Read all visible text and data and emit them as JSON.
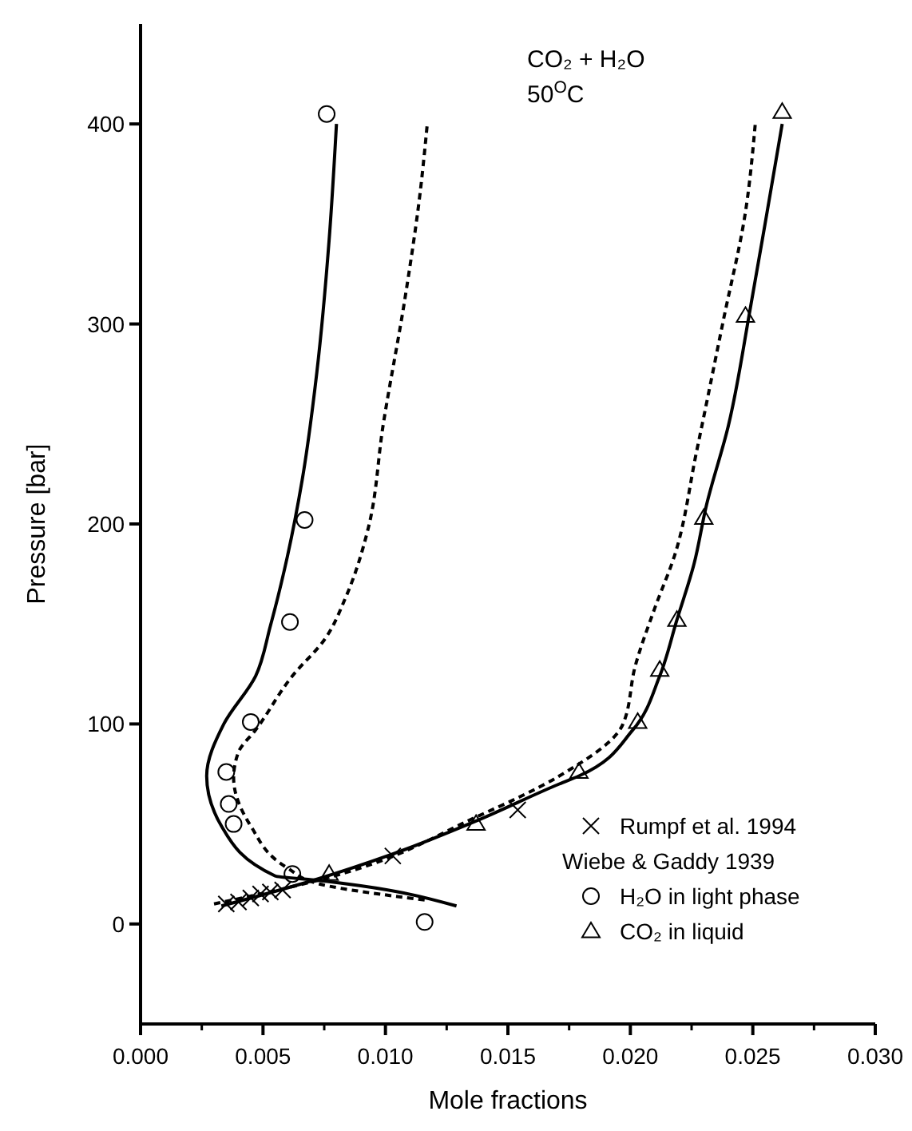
{
  "chart_data": {
    "type": "scatter",
    "xlabel": "Mole fractions",
    "ylabel": "Pressure [bar]",
    "xlim": [
      0,
      0.03
    ],
    "ylim": [
      -50,
      450
    ],
    "xticks": [
      {
        "value": 0,
        "label": "0.000"
      },
      {
        "value": 0.005,
        "label": "0.005"
      },
      {
        "value": 0.01,
        "label": "0.010"
      },
      {
        "value": 0.015,
        "label": "0.015"
      },
      {
        "value": 0.02,
        "label": "0.020"
      },
      {
        "value": 0.025,
        "label": "0.025"
      },
      {
        "value": 0.03,
        "label": "0.030"
      }
    ],
    "yticks": [
      0,
      100,
      200,
      300,
      400
    ],
    "grid": false,
    "legend": "bottom right",
    "annotations": [
      "CO₂ + H₂O",
      "50$^{O}$C",
      "Wiebe & Gaddy 1939"
    ],
    "series": [
      {
        "type": "line",
        "color": "#000000",
        "line_style": "solid",
        "marker": "none",
        "x": [
          0.0129,
          0.0071,
          0.0055,
          0.0033,
          0.0027,
          0.0034,
          0.0047,
          0.0053,
          0.006,
          0.0066,
          0.0072,
          0.0077,
          0.008
        ],
        "values": [
          9,
          22,
          24,
          49,
          74,
          100,
          124,
          149,
          184,
          222,
          276,
          342,
          400
        ]
      },
      {
        "type": "line",
        "color": "#000000",
        "line_style": "dashed",
        "marker": "none",
        "x": [
          0.0116,
          0.0073,
          0.006,
          0.0045,
          0.0038,
          0.004,
          0.0047,
          0.0062,
          0.0075,
          0.0084,
          0.0093,
          0.0099,
          0.0108,
          0.0114,
          0.0117
        ],
        "values": [
          12,
          20,
          28,
          49,
          73,
          86,
          97,
          124,
          142,
          164,
          198,
          249,
          313,
          364,
          399
        ]
      },
      {
        "type": "line",
        "color": "#000000",
        "line_style": "solid",
        "marker": "none",
        "x": [
          0.0033,
          0.0071,
          0.0103,
          0.0138,
          0.0171,
          0.0179,
          0.0201,
          0.0212,
          0.0219,
          0.0226,
          0.0231,
          0.024,
          0.0249,
          0.0255,
          0.0262
        ],
        "values": [
          9,
          22,
          35,
          52,
          70,
          74,
          97,
          124,
          152,
          180,
          209,
          249,
          308,
          350,
          400
        ]
      },
      {
        "type": "line",
        "color": "#000000",
        "line_style": "dashed",
        "marker": "none",
        "x": [
          0.003,
          0.0073,
          0.0138,
          0.0171,
          0.0197,
          0.0202,
          0.021,
          0.0218,
          0.0227,
          0.0238,
          0.0247,
          0.0251
        ],
        "values": [
          10,
          22,
          54,
          74,
          100,
          129,
          158,
          184,
          236,
          302,
          356,
          400
        ]
      },
      {
        "name": "Rumpf et al. 1994",
        "color": "#000000",
        "marker": "cross",
        "x": [
          0.0035,
          0.004,
          0.0045,
          0.0049,
          0.0053,
          0.0058,
          0.0103,
          0.0154
        ],
        "values": [
          10,
          11,
          13,
          15,
          16,
          17,
          34,
          57
        ]
      },
      {
        "name": "H₂O in light phase",
        "color": "#000000",
        "marker": "circle",
        "x": [
          0.0116,
          0.0062,
          0.0038,
          0.0036,
          0.0035,
          0.0045,
          0.0061,
          0.0067,
          0.0076
        ],
        "values": [
          1,
          25,
          50,
          60,
          76,
          101,
          151,
          202,
          405
        ]
      },
      {
        "name": "CO₂ in liquid",
        "color": "#000000",
        "marker": "triangle",
        "x": [
          0.0077,
          0.0137,
          0.0179,
          0.0203,
          0.0212,
          0.0219,
          0.023,
          0.0247,
          0.0262
        ],
        "values": [
          25,
          50,
          76,
          101,
          127,
          152,
          203,
          304,
          406
        ]
      }
    ]
  }
}
